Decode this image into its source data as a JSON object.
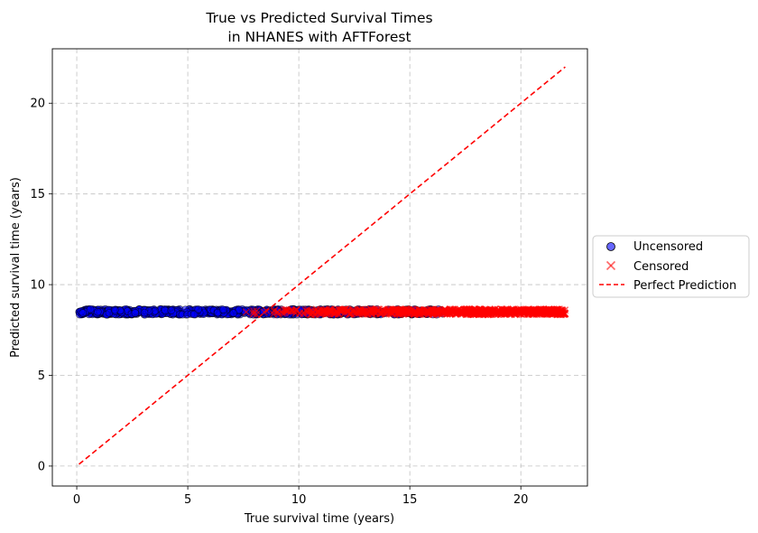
{
  "chart_data": {
    "type": "scatter",
    "title_line1": "True vs Predicted Survival Times",
    "title_line2": "in NHANES with AFTForest",
    "xlabel": "True survival time (years)",
    "ylabel": "Predicted survival time (years)",
    "xlim": [
      -1.1,
      23.0
    ],
    "ylim": [
      -1.1,
      23.0
    ],
    "x_ticks": [
      0,
      5,
      10,
      15,
      20
    ],
    "y_ticks": [
      0,
      5,
      10,
      15,
      20
    ],
    "x_tick_labels": [
      "0",
      "5",
      "10",
      "15",
      "20"
    ],
    "y_tick_labels": [
      "0",
      "5",
      "10",
      "15",
      "20"
    ],
    "grid": true,
    "legend_position": "right, outside plot",
    "series": [
      {
        "name": "Uncensored",
        "marker": "circle",
        "color": "#0000ff",
        "edge_color": "#000000",
        "x_range": [
          0.1,
          16.5
        ],
        "y_range": [
          8.35,
          8.65
        ],
        "approx_count": 900
      },
      {
        "name": "Censored",
        "marker": "x",
        "color": "#ff0000",
        "x_range": [
          7.5,
          22.0
        ],
        "y_range": [
          8.35,
          8.65
        ],
        "approx_count": 900
      },
      {
        "name": "Perfect Prediction",
        "marker": "line",
        "style": "dashed",
        "color": "#ff0000",
        "x": [
          0.1,
          22.0
        ],
        "y": [
          0.1,
          22.0
        ]
      }
    ]
  }
}
